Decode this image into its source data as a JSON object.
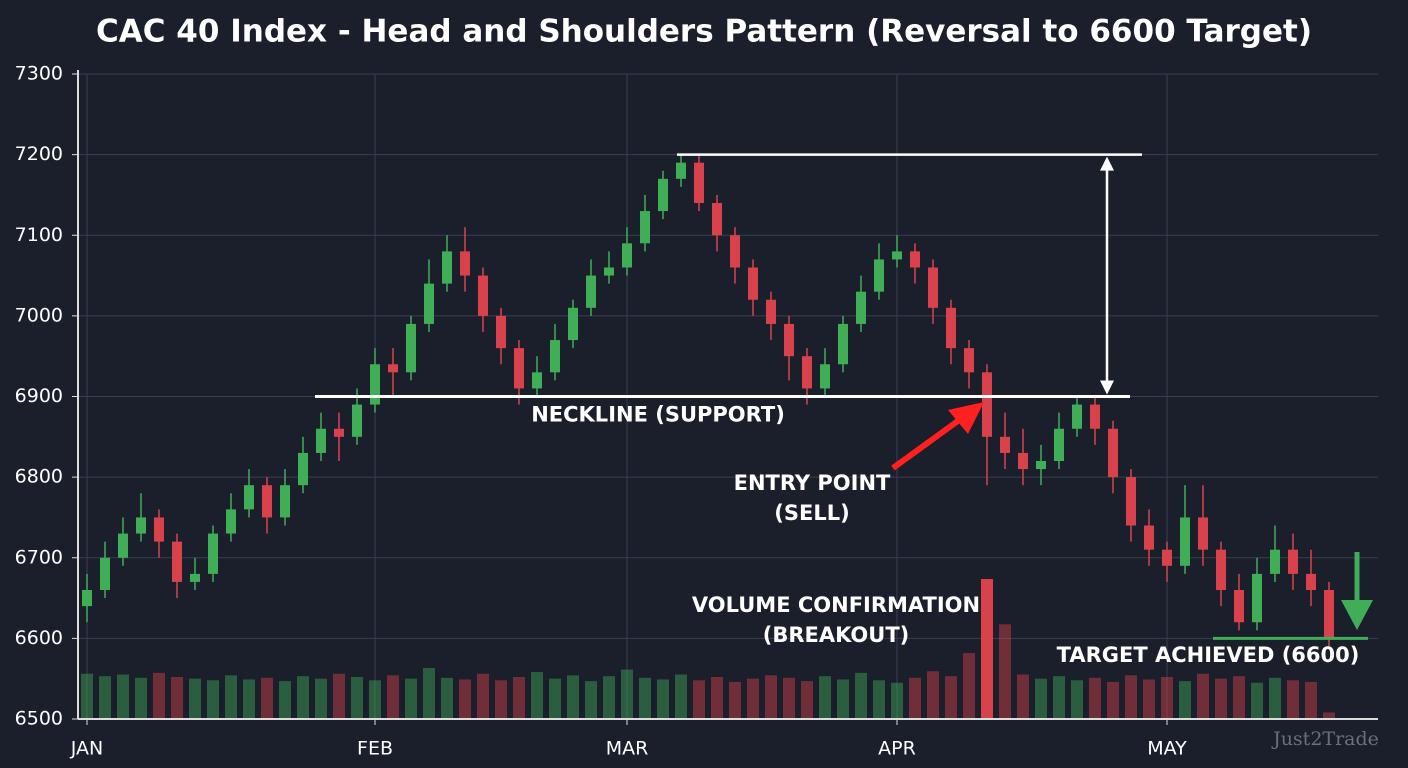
{
  "chart_data": {
    "type": "candlestick",
    "title": "CAC 40 Index - Head and Shoulders Pattern (Reversal to 6600 Target)",
    "categories": [
      "JAN",
      null,
      null,
      null,
      null,
      null,
      null,
      null,
      null,
      null,
      null,
      null,
      null,
      null,
      null,
      null,
      "FEB",
      null,
      null,
      null,
      null,
      null,
      null,
      null,
      null,
      null,
      null,
      null,
      null,
      null,
      "MAR",
      null,
      null,
      null,
      null,
      null,
      null,
      null,
      null,
      null,
      null,
      null,
      null,
      null,
      null,
      "APR",
      null,
      null,
      null,
      null,
      null,
      null,
      null,
      null,
      null,
      null,
      null,
      null,
      null,
      null,
      "MAY",
      null,
      null,
      null,
      null,
      null,
      null,
      null,
      null,
      null
    ],
    "open": [
      6640,
      6660,
      6700,
      6730,
      6750,
      6720,
      6670,
      6680,
      6730,
      6760,
      6790,
      6750,
      6790,
      6830,
      6860,
      6850,
      6890,
      6940,
      6930,
      6990,
      7040,
      7080,
      7050,
      7000,
      6960,
      6910,
      6930,
      6970,
      7010,
      7050,
      7060,
      7090,
      7130,
      7170,
      7190,
      7140,
      7100,
      7060,
      7020,
      6990,
      6950,
      6910,
      6940,
      6990,
      7030,
      7070,
      7080,
      7060,
      7010,
      6960,
      6930,
      6850,
      6830,
      6810,
      6820,
      6860,
      6890,
      6860,
      6800,
      6740,
      6710,
      6690,
      6750,
      6710,
      6660,
      6620,
      6680,
      6710,
      6680,
      6660
    ],
    "high": [
      6680,
      6720,
      6750,
      6780,
      6760,
      6730,
      6700,
      6740,
      6780,
      6810,
      6800,
      6810,
      6850,
      6880,
      6880,
      6910,
      6960,
      6960,
      7000,
      7070,
      7100,
      7110,
      7060,
      7010,
      6970,
      6950,
      6990,
      7020,
      7070,
      7080,
      7110,
      7150,
      7180,
      7200,
      7200,
      7150,
      7110,
      7070,
      7030,
      7000,
      6960,
      6960,
      7000,
      7050,
      7090,
      7100,
      7090,
      7070,
      7020,
      6970,
      6940,
      6880,
      6860,
      6840,
      6880,
      6900,
      6900,
      6870,
      6810,
      6760,
      6720,
      6790,
      6790,
      6720,
      6680,
      6700,
      6740,
      6730,
      6710,
      6670
    ],
    "low": [
      6620,
      6650,
      6690,
      6720,
      6700,
      6650,
      6660,
      6670,
      6720,
      6750,
      6730,
      6740,
      6780,
      6820,
      6820,
      6840,
      6880,
      6900,
      6920,
      6980,
      7030,
      7030,
      6980,
      6940,
      6890,
      6900,
      6920,
      6960,
      7000,
      7040,
      7050,
      7080,
      7120,
      7160,
      7130,
      7080,
      7040,
      7000,
      6970,
      6920,
      6890,
      6900,
      6930,
      6980,
      7020,
      7060,
      7040,
      6990,
      6940,
      6910,
      6790,
      6810,
      6790,
      6790,
      6810,
      6850,
      6840,
      6780,
      6720,
      6690,
      6670,
      6680,
      6690,
      6640,
      6610,
      6610,
      6670,
      6660,
      6640,
      6590
    ],
    "close": [
      6660,
      6700,
      6730,
      6750,
      6720,
      6670,
      6680,
      6730,
      6760,
      6790,
      6750,
      6790,
      6830,
      6860,
      6850,
      6890,
      6940,
      6930,
      6990,
      7040,
      7080,
      7050,
      7000,
      6960,
      6910,
      6930,
      6970,
      7010,
      7050,
      7060,
      7090,
      7130,
      7170,
      7190,
      7140,
      7100,
      7060,
      7020,
      6990,
      6950,
      6910,
      6940,
      6990,
      7030,
      7070,
      7080,
      7060,
      7010,
      6960,
      6930,
      6850,
      6830,
      6810,
      6820,
      6860,
      6890,
      6860,
      6800,
      6740,
      6710,
      6690,
      6750,
      6710,
      6660,
      6620,
      6680,
      6710,
      6680,
      6660,
      6600
    ],
    "volume": [
      55,
      52,
      54,
      50,
      56,
      51,
      49,
      47,
      53,
      48,
      50,
      46,
      52,
      49,
      55,
      51,
      47,
      53,
      49,
      62,
      50,
      48,
      55,
      47,
      51,
      57,
      49,
      53,
      46,
      52,
      60,
      50,
      48,
      54,
      47,
      51,
      45,
      49,
      53,
      50,
      46,
      52,
      48,
      56,
      47,
      44,
      50,
      58,
      52,
      80,
      170,
      115,
      54,
      49,
      52,
      47,
      50,
      45,
      53,
      48,
      51,
      46,
      55,
      49,
      52,
      44,
      50,
      47,
      45,
      8
    ],
    "ylim": [
      6500,
      7300
    ],
    "yticks": [
      6500,
      6600,
      6700,
      6800,
      6900,
      7000,
      7100,
      7200,
      7300
    ],
    "grid": true,
    "up_color": "#3fae56",
    "down_color": "#d9424b",
    "annotations": {
      "neckline": {
        "label": "NECKLINE (SUPPORT)",
        "value": 6900
      },
      "head_level": {
        "value": 7200
      },
      "target": {
        "label": "TARGET ACHIEVED (6600)",
        "value": 6600
      },
      "entry": [
        "ENTRY POINT",
        "(SELL)"
      ],
      "volume": [
        "VOLUME CONFIRMATION",
        "(BREAKOUT)"
      ]
    },
    "watermark": "Just2Trade"
  }
}
